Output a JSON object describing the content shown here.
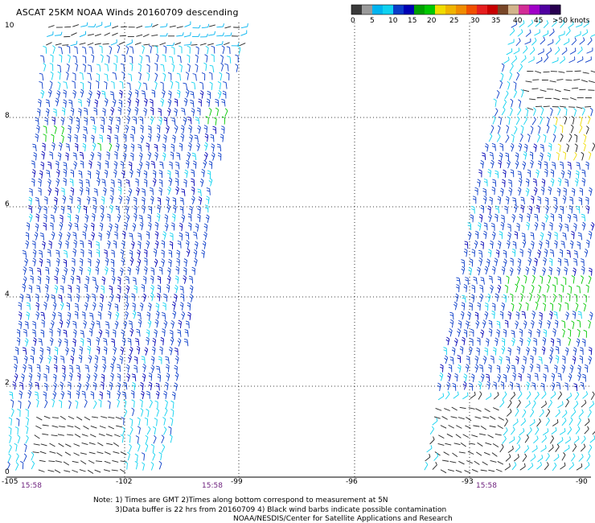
{
  "title": "ASCAT 25KM NOAA Winds 20160709 descending",
  "legend": {
    "colors": [
      "#3a3a3a",
      "#9a9a9a",
      "#00b4f0",
      "#0fd2f0",
      "#0a3cc8",
      "#0000b4",
      "#00a000",
      "#00c800",
      "#f0dc00",
      "#f0b400",
      "#f08c00",
      "#f05000",
      "#e61e1e",
      "#c80000",
      "#784628",
      "#d2b48c",
      "#d22d96",
      "#a000c8",
      "#5000a0",
      "#280050"
    ],
    "labels": [
      "0",
      "5",
      "10",
      "15",
      "20",
      "25",
      "30",
      "35",
      "40",
      "45",
      ">50 knots"
    ]
  },
  "axes": {
    "x_labels": [
      "-105",
      "-102",
      "-99",
      "-96",
      "-93",
      "-90"
    ],
    "y_labels": [
      "0",
      "2",
      "4",
      "6",
      "8",
      "10"
    ]
  },
  "times": [
    "15:58",
    "15:58",
    "15:58"
  ],
  "notes": [
    "Note: 1) Times are GMT 2)Times along bottom correspond to measurement at 5N",
    "3)Data buffer is 22 hrs from 20160709 4) Black wind barbs indicate possible contamination",
    "NOAA/NESDIS/Center for Satellite Applications and Research"
  ]
}
